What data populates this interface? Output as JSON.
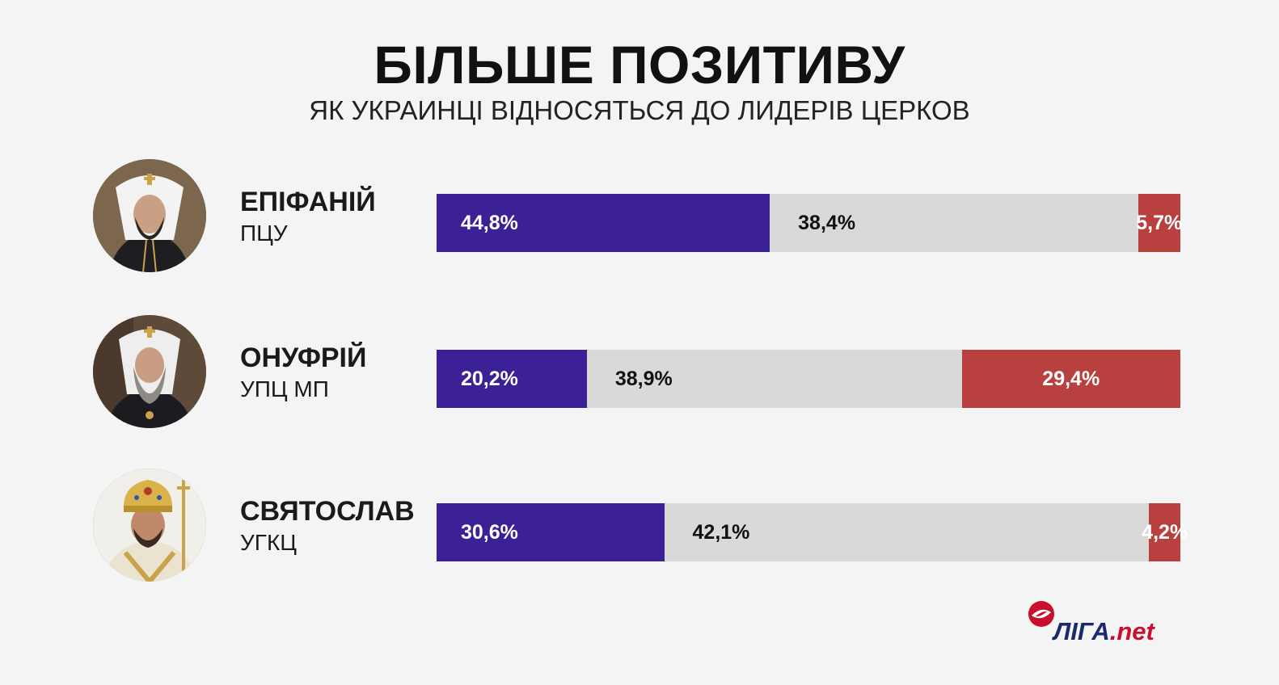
{
  "title": "БІЛЬШЕ ПОЗИТИВУ",
  "subtitle": "ЯК УКРАИНЦІ ВІДНОСЯТЬСЯ ДО ЛИДЕРІВ ЦЕРКОВ",
  "colors": {
    "positive": "#3b2096",
    "neutral": "#d9d9d9",
    "negative": "#b8403f",
    "background": "#f4f4f4"
  },
  "chart_data": {
    "type": "bar",
    "orientation": "horizontal-stacked",
    "title": "БІЛЬШЕ ПОЗИТИВУ",
    "subtitle": "ЯК УКРАИНЦІ ВІДНОСЯТЬСЯ ДО ЛИДЕРІВ ЦЕРКОВ",
    "unit": "%",
    "leaders": [
      {
        "name": "ЕПІФАНІЙ",
        "church": "ПЦУ",
        "avatar_icon": "bishop-white-hood-portrait-icon",
        "values": [
          44.8,
          38.4,
          5.7
        ],
        "labels": [
          "44,8%",
          "38,4%",
          "5,7%"
        ]
      },
      {
        "name": "ОНУФРІЙ",
        "church": "УПЦ МП",
        "avatar_icon": "bishop-white-hood-grey-beard-portrait-icon",
        "values": [
          20.2,
          38.9,
          29.4
        ],
        "labels": [
          "20,2%",
          "38,9%",
          "29,4%"
        ]
      },
      {
        "name": "СВЯТОСЛАВ",
        "church": "УГКЦ",
        "avatar_icon": "archbishop-gold-mitre-portrait-icon",
        "values": [
          30.6,
          42.1,
          4.2
        ],
        "labels": [
          "30,6%",
          "42,1%",
          "4,2%"
        ]
      }
    ],
    "grid": false,
    "legend": "none"
  },
  "logo": {
    "icon": "liga-net-logo-icon",
    "text_main": "ЛІГА",
    "text_suffix": ".net"
  }
}
